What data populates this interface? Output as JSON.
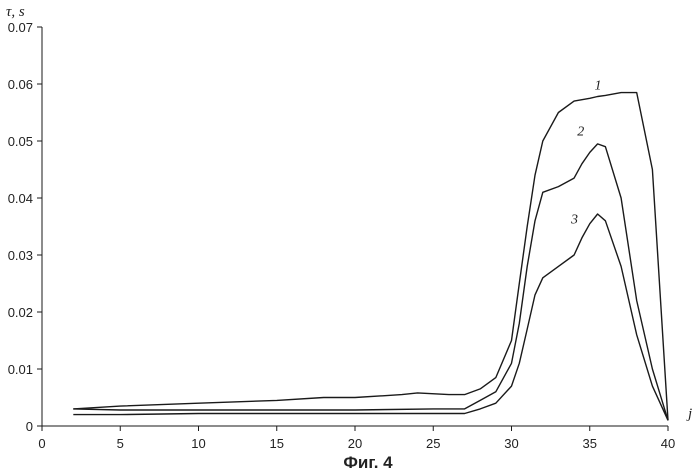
{
  "chart_data": {
    "type": "line",
    "title": "",
    "caption": "Фиг. 4",
    "ylabel": "τ, s",
    "xlabel": "j",
    "xlim": [
      0,
      40
    ],
    "ylim": [
      0,
      0.07
    ],
    "x_ticks": [
      "0",
      "5",
      "10",
      "15",
      "20",
      "25",
      "30",
      "35",
      "40"
    ],
    "y_ticks": [
      "0",
      "0.01",
      "0.02",
      "0.03",
      "0.04",
      "0.05",
      "0.06",
      "0.07"
    ],
    "grid": false,
    "line_color": "#1a1a1a",
    "series": [
      {
        "name": "1",
        "x": [
          2,
          5,
          10,
          15,
          18,
          20,
          23,
          24,
          26,
          27,
          28,
          29,
          30,
          30.5,
          31,
          31.5,
          32,
          33,
          34,
          35,
          35.5,
          36,
          37,
          38,
          39,
          40
        ],
        "y": [
          0.003,
          0.0035,
          0.004,
          0.0045,
          0.005,
          0.005,
          0.0055,
          0.0058,
          0.0055,
          0.0055,
          0.0065,
          0.0085,
          0.015,
          0.025,
          0.035,
          0.044,
          0.05,
          0.055,
          0.057,
          0.0575,
          0.0578,
          0.058,
          0.0585,
          0.0585,
          0.045,
          0.001
        ]
      },
      {
        "name": "2",
        "x": [
          2,
          5,
          10,
          15,
          20,
          25,
          27,
          28,
          29,
          30,
          30.5,
          31,
          31.5,
          32,
          33,
          34,
          34.5,
          35,
          35.5,
          36,
          37,
          38,
          39,
          40
        ],
        "y": [
          0.003,
          0.0028,
          0.0028,
          0.0028,
          0.0028,
          0.003,
          0.003,
          0.0045,
          0.006,
          0.011,
          0.018,
          0.028,
          0.036,
          0.041,
          0.042,
          0.0435,
          0.046,
          0.048,
          0.0495,
          0.049,
          0.04,
          0.022,
          0.01,
          0.001
        ]
      },
      {
        "name": "3",
        "x": [
          2,
          5,
          10,
          15,
          20,
          25,
          27,
          28,
          29,
          30,
          30.5,
          31,
          31.5,
          32,
          33,
          34,
          34.5,
          35,
          35.5,
          36,
          37,
          38,
          39,
          40
        ],
        "y": [
          0.002,
          0.002,
          0.0022,
          0.0022,
          0.0022,
          0.0022,
          0.0022,
          0.003,
          0.004,
          0.007,
          0.011,
          0.017,
          0.023,
          0.026,
          0.028,
          0.03,
          0.033,
          0.0355,
          0.0372,
          0.036,
          0.028,
          0.016,
          0.007,
          0.001
        ]
      }
    ],
    "series_label_at": [
      {
        "name": "1",
        "x": 35.3,
        "y": 0.059
      },
      {
        "name": "2",
        "x": 34.2,
        "y": 0.051
      },
      {
        "name": "3",
        "x": 33.8,
        "y": 0.0355
      }
    ]
  }
}
